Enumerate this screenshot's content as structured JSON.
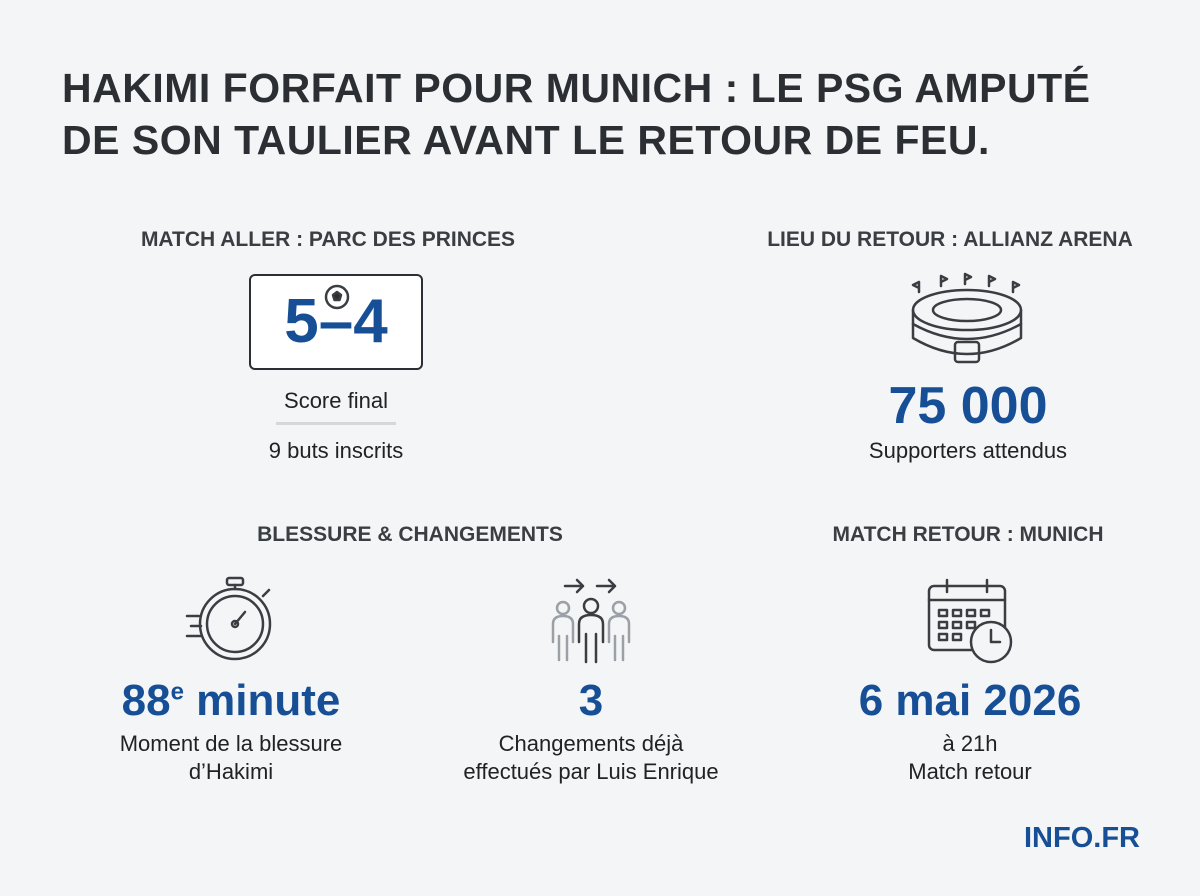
{
  "header": {
    "title_lines": [
      "HAKIMI FORFAIT POUR MUNICH : LE PSG AMPUTÉ",
      "DE SON TAULIER AVANT LE RETOUR DE FEU."
    ]
  },
  "sections": [
    {
      "heading": "MATCH ALLER : PARC DES PRINCES",
      "score_home": "5",
      "score_away": "4",
      "label": "Score final",
      "note": "9 buts inscrits"
    },
    {
      "heading": "LIEU DU RETOUR : ALLIANZ ARENA",
      "value": "75 000",
      "label": "Supporters attendus"
    },
    {
      "heading": "BLESSURE & CHANGEMENTS",
      "stats": [
        {
          "value": "88",
          "superscript": "e",
          "unit": "minute",
          "label_lines": [
            "Moment de la blessure",
            "d’Hakimi"
          ]
        },
        {
          "value": "3",
          "label_lines": [
            "Changements déjà",
            "effectués par Luis Enrique"
          ]
        }
      ]
    },
    {
      "heading": "MATCH RETOUR : MUNICH",
      "value": "6 mai 2026",
      "label_lines": [
        "à 21h",
        "Match retour"
      ]
    }
  ],
  "footer": {
    "brand": "INFO.FR"
  }
}
